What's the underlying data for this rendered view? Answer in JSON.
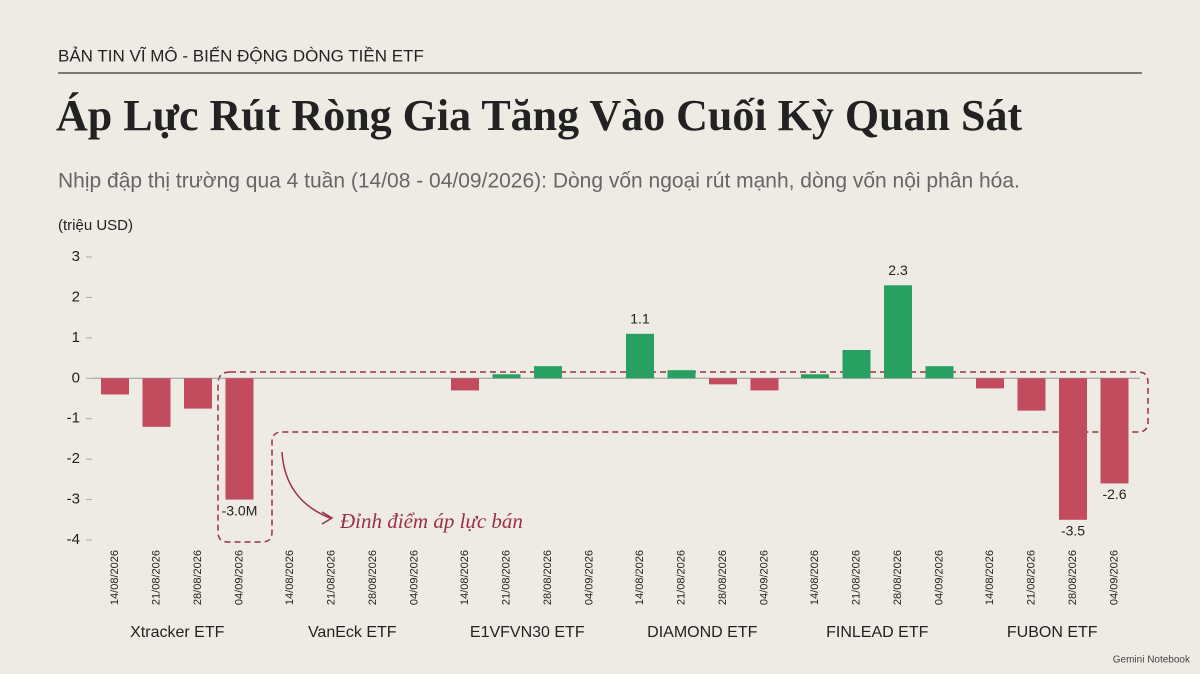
{
  "chart_data": {
    "type": "bar",
    "kicker": "BẢN TIN VĨ MÔ - BIẾN ĐỘNG DÒNG TIỀN ETF",
    "title": "Áp Lực Rút Ròng Gia Tăng Vào Cuối Kỳ Quan Sát",
    "subtitle": "Nhịp đập thị trường qua 4 tuần (14/08 - 04/09/2026): Dòng vốn ngoại rút mạnh, dòng vốn nội phân hóa.",
    "y_label": "(triệu USD)",
    "groups": [
      "Xtracker ETF",
      "VanEck ETF",
      "E1VFVN30 ETF",
      "DIAMOND ETF",
      "FINLEAD ETF",
      "FUBON ETF"
    ],
    "categories": [
      "14/08/2026",
      "21/08/2026",
      "28/08/2026",
      "04/09/2026",
      "14/08/2026",
      "21/08/2026",
      "28/08/2026",
      "04/09/2026",
      "14/08/2026",
      "21/08/2026",
      "28/08/2026",
      "04/09/2026",
      "14/08/2026",
      "21/08/2026",
      "28/08/2026",
      "04/09/2026",
      "14/08/2026",
      "21/08/2026",
      "28/08/2026",
      "04/09/2026",
      "14/08/2026",
      "21/08/2026",
      "28/08/2026",
      "04/09/2026"
    ],
    "values": [
      -0.4,
      -1.2,
      -0.75,
      -3.0,
      0,
      0,
      0,
      0,
      -0.3,
      0.1,
      0.3,
      0,
      1.1,
      0.2,
      -0.15,
      -0.3,
      0.1,
      0.7,
      2.3,
      0.3,
      -0.25,
      -0.8,
      -3.5,
      -2.6
    ],
    "value_labels": [
      null,
      null,
      null,
      "-3.0M",
      null,
      null,
      null,
      null,
      null,
      null,
      null,
      null,
      "1.1",
      null,
      null,
      null,
      null,
      null,
      "2.3",
      null,
      null,
      null,
      "-3.5",
      "-2.6"
    ],
    "positive_color": "#27a062",
    "negative_color": "#c24b5e",
    "ylim": [
      -4,
      3
    ],
    "yticks": [
      -4,
      -3,
      -2,
      -1,
      0,
      1,
      2,
      3
    ],
    "annotation": "Đỉnh điểm áp lực bán",
    "footer": "Gemini Notebook"
  }
}
